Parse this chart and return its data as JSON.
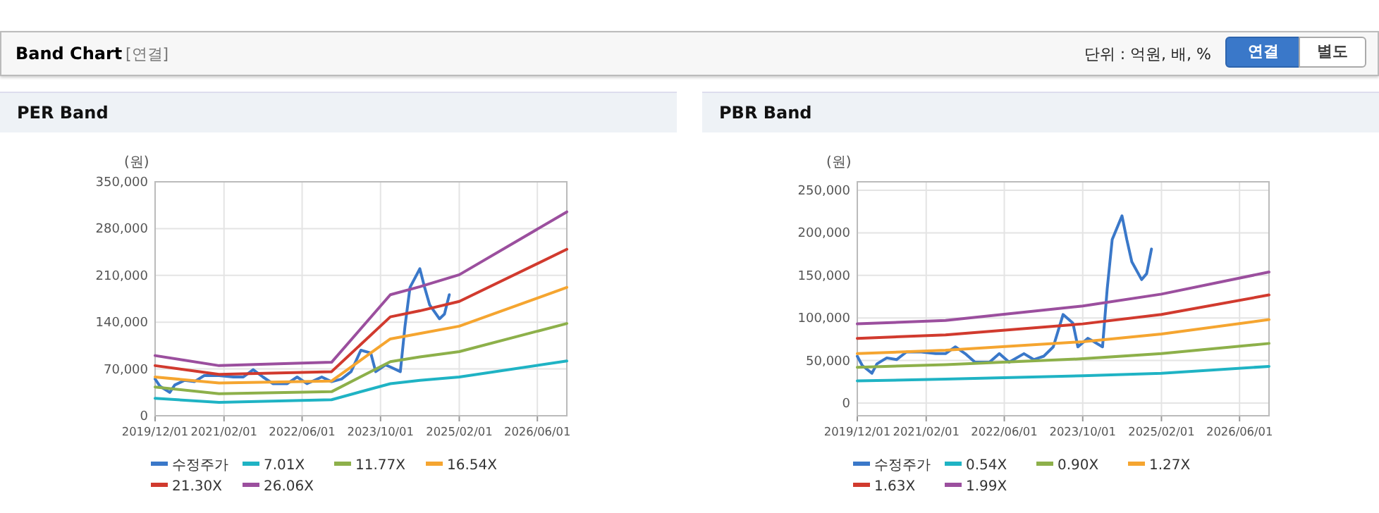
{
  "chart_data": [
    {
      "type": "other",
      "title": "Band Chart",
      "annotations": [
        "[연결]",
        "단위 : 억원, 배, %",
        "연결",
        "별도"
      ]
    },
    {
      "type": "line",
      "title": "PER Band",
      "ylabel": "(원)",
      "grid": true,
      "legend": "bottom",
      "marker": "none",
      "line_style": "solid",
      "xlim": [
        "2019-12-01",
        "2026-12-01"
      ],
      "xticks": [
        {
          "value": "2019-12-01",
          "label": "2019/12/01"
        },
        {
          "value": "2021-02-01",
          "label": "2021/02/01"
        },
        {
          "value": "2022-06-01",
          "label": "2022/06/01"
        },
        {
          "value": "2023-10-01",
          "label": "2023/10/01"
        },
        {
          "value": "2025-02-01",
          "label": "2025/02/01"
        },
        {
          "value": "2026-06-01",
          "label": "2026/06/01"
        }
      ],
      "ylim": [
        0,
        350000
      ],
      "yticks": [
        {
          "value": 0,
          "label": "0"
        },
        {
          "value": 70000,
          "label": "70,000"
        },
        {
          "value": 140000,
          "label": "140,000"
        },
        {
          "value": 210000,
          "label": "210,000"
        },
        {
          "value": 280000,
          "label": "280,000"
        },
        {
          "value": 350000,
          "label": "350,000"
        }
      ],
      "series": [
        {
          "name": "수정주가",
          "color": "#3a78c9",
          "x": [
            "2019-12-01",
            "2020-01-01",
            "2020-03-01",
            "2020-04-01",
            "2020-06-01",
            "2020-08-01",
            "2020-10-01",
            "2021-01-01",
            "2021-04-01",
            "2021-06-01",
            "2021-08-01",
            "2021-10-01",
            "2021-12-01",
            "2022-03-01",
            "2022-05-01",
            "2022-07-01",
            "2022-10-01",
            "2022-12-01",
            "2023-02-01",
            "2023-04-01",
            "2023-06-01",
            "2023-08-01",
            "2023-09-01",
            "2023-11-01",
            "2023-12-01",
            "2024-02-01",
            "2024-03-01",
            "2024-04-01",
            "2024-06-01",
            "2024-07-01",
            "2024-08-01",
            "2024-10-01",
            "2024-11-01",
            "2024-12-01"
          ],
          "values": [
            55000,
            44000,
            35000,
            46000,
            53000,
            51000,
            60000,
            60000,
            58000,
            58000,
            69000,
            58000,
            48000,
            48000,
            58000,
            48000,
            58000,
            51000,
            55000,
            66000,
            98000,
            94000,
            66000,
            76000,
            73000,
            66000,
            134000,
            192000,
            220000,
            192000,
            166000,
            145000,
            152000,
            181000
          ]
        },
        {
          "name": "7.01X",
          "color": "#1fb3c4",
          "x": [
            "2019-12-01",
            "2021-01-01",
            "2022-12-01",
            "2023-12-01",
            "2024-06-01",
            "2025-02-01",
            "2026-12-01"
          ],
          "values": [
            26000,
            20000,
            24000,
            48000,
            53000,
            58000,
            82000
          ]
        },
        {
          "name": "11.77X",
          "color": "#8db04a",
          "x": [
            "2019-12-01",
            "2021-01-01",
            "2022-12-01",
            "2023-12-01",
            "2024-06-01",
            "2025-02-01",
            "2026-12-01"
          ],
          "values": [
            43000,
            33000,
            36000,
            81000,
            88000,
            96000,
            138000
          ]
        },
        {
          "name": "16.54X",
          "color": "#f5a530",
          "x": [
            "2019-12-01",
            "2021-01-01",
            "2022-12-01",
            "2023-12-01",
            "2024-06-01",
            "2025-02-01",
            "2026-12-01"
          ],
          "values": [
            58000,
            49000,
            52000,
            115000,
            123000,
            134000,
            192000
          ]
        },
        {
          "name": "21.30X",
          "color": "#d13a2e",
          "x": [
            "2019-12-01",
            "2021-01-01",
            "2022-12-01",
            "2023-12-01",
            "2024-06-01",
            "2025-02-01",
            "2026-12-01"
          ],
          "values": [
            75000,
            62000,
            66000,
            148000,
            157000,
            171000,
            249000
          ]
        },
        {
          "name": "26.06X",
          "color": "#9b4f9e",
          "x": [
            "2019-12-01",
            "2021-01-01",
            "2022-12-01",
            "2023-12-01",
            "2024-06-01",
            "2025-02-01",
            "2026-12-01"
          ],
          "values": [
            90000,
            75000,
            80000,
            181000,
            193000,
            211000,
            305000
          ]
        }
      ]
    },
    {
      "type": "line",
      "title": "PBR Band",
      "ylabel": "(원)",
      "grid": true,
      "legend": "bottom",
      "marker": "none",
      "line_style": "solid",
      "xlim": [
        "2019-12-01",
        "2026-12-01"
      ],
      "xticks": [
        {
          "value": "2019-12-01",
          "label": "2019/12/01"
        },
        {
          "value": "2021-02-01",
          "label": "2021/02/01"
        },
        {
          "value": "2022-06-01",
          "label": "2022/06/01"
        },
        {
          "value": "2023-10-01",
          "label": "2023/10/01"
        },
        {
          "value": "2025-02-01",
          "label": "2025/02/01"
        },
        {
          "value": "2026-06-01",
          "label": "2026/06/01"
        }
      ],
      "ylim": [
        -15000,
        260000
      ],
      "yticks": [
        {
          "value": 0,
          "label": "0"
        },
        {
          "value": 50000,
          "label": "50,000"
        },
        {
          "value": 100000,
          "label": "100,000"
        },
        {
          "value": 150000,
          "label": "150,000"
        },
        {
          "value": 200000,
          "label": "200,000"
        },
        {
          "value": 250000,
          "label": "250,000"
        }
      ],
      "series": [
        {
          "name": "수정주가",
          "color": "#3a78c9",
          "x": [
            "2019-12-01",
            "2020-01-01",
            "2020-03-01",
            "2020-04-01",
            "2020-06-01",
            "2020-08-01",
            "2020-10-01",
            "2021-01-01",
            "2021-04-01",
            "2021-06-01",
            "2021-08-01",
            "2021-10-01",
            "2021-12-01",
            "2022-03-01",
            "2022-05-01",
            "2022-07-01",
            "2022-10-01",
            "2022-12-01",
            "2023-02-01",
            "2023-04-01",
            "2023-06-01",
            "2023-08-01",
            "2023-09-01",
            "2023-11-01",
            "2023-12-01",
            "2024-02-01",
            "2024-03-01",
            "2024-04-01",
            "2024-06-01",
            "2024-07-01",
            "2024-08-01",
            "2024-10-01",
            "2024-11-01",
            "2024-12-01"
          ],
          "values": [
            55000,
            44000,
            35000,
            46000,
            53000,
            51000,
            60000,
            60000,
            58000,
            58000,
            66000,
            58000,
            48000,
            48000,
            58000,
            48000,
            58000,
            51000,
            55000,
            66000,
            104000,
            94000,
            66000,
            76000,
            73000,
            66000,
            134000,
            192000,
            220000,
            192000,
            166000,
            145000,
            152000,
            181000
          ]
        },
        {
          "name": "0.54X",
          "color": "#1fb3c4",
          "x": [
            "2019-12-01",
            "2021-06-01",
            "2023-10-01",
            "2025-02-01",
            "2026-12-01"
          ],
          "values": [
            26000,
            28000,
            32000,
            35000,
            43000
          ]
        },
        {
          "name": "0.90X",
          "color": "#8db04a",
          "x": [
            "2019-12-01",
            "2021-06-01",
            "2023-10-01",
            "2025-02-01",
            "2026-12-01"
          ],
          "values": [
            42000,
            45000,
            52000,
            58000,
            70000
          ]
        },
        {
          "name": "1.27X",
          "color": "#f5a530",
          "x": [
            "2019-12-01",
            "2021-06-01",
            "2023-10-01",
            "2025-02-01",
            "2026-12-01"
          ],
          "values": [
            58000,
            62000,
            72000,
            81000,
            98000
          ]
        },
        {
          "name": "1.63X",
          "color": "#d13a2e",
          "x": [
            "2019-12-01",
            "2021-06-01",
            "2023-10-01",
            "2025-02-01",
            "2026-12-01"
          ],
          "values": [
            76000,
            80000,
            93000,
            104000,
            127000
          ]
        },
        {
          "name": "1.99X",
          "color": "#9b4f9e",
          "x": [
            "2019-12-01",
            "2021-06-01",
            "2023-10-01",
            "2025-02-01",
            "2026-12-01"
          ],
          "values": [
            93000,
            97000,
            114000,
            128000,
            154000
          ]
        }
      ]
    }
  ]
}
